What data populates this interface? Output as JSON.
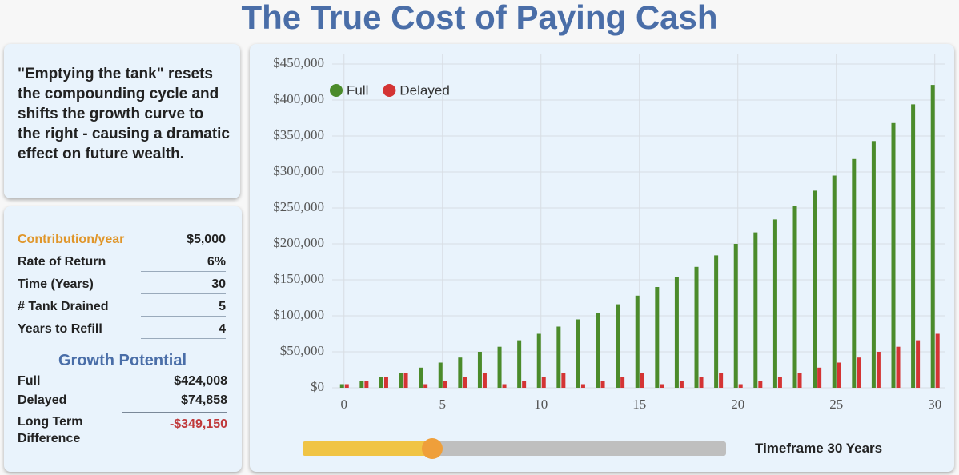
{
  "title": "The True Cost of Paying Cash",
  "summary": "\"Emptying the tank\" resets the compounding cycle and shifts the growth curve to the right - causing a dramatic effect on future wealth.",
  "inputs": [
    {
      "label": "Contribution/year",
      "value": "$5,000"
    },
    {
      "label": "Rate of Return",
      "value": "6%"
    },
    {
      "label": "Time (Years)",
      "value": "30"
    },
    {
      "label": "# Tank Drained",
      "value": "5"
    },
    {
      "label": "Years to Refill",
      "value": "4"
    }
  ],
  "growth": {
    "heading": "Growth Potential",
    "rows": [
      {
        "label": "Full",
        "value": "$424,008"
      },
      {
        "label": "Delayed",
        "value": "$74,858"
      },
      {
        "label": "Long Term Difference",
        "value": "-$349,150"
      }
    ]
  },
  "chart_data": {
    "type": "bar",
    "x": [
      0,
      1,
      2,
      3,
      4,
      5,
      6,
      7,
      8,
      9,
      10,
      11,
      12,
      13,
      14,
      15,
      16,
      17,
      18,
      19,
      20,
      21,
      22,
      23,
      24,
      25,
      26,
      27,
      28,
      29,
      30
    ],
    "series": [
      {
        "name": "Full",
        "color": "#4b8b2b",
        "values": [
          5000,
          10000,
          15000,
          21000,
          28000,
          35000,
          42000,
          50000,
          57000,
          66000,
          75000,
          85000,
          95000,
          104000,
          116000,
          128000,
          140000,
          154000,
          168000,
          184000,
          200000,
          216000,
          234000,
          253000,
          274000,
          295000,
          318000,
          343000,
          368000,
          394000,
          421000
        ]
      },
      {
        "name": "Delayed",
        "color": "#d43434",
        "values": [
          5000,
          10000,
          15000,
          21000,
          5000,
          10000,
          15000,
          21000,
          5000,
          10000,
          15000,
          21000,
          5000,
          10000,
          15000,
          21000,
          5000,
          10000,
          15000,
          21000,
          5000,
          10000,
          15000,
          21000,
          28000,
          35000,
          42000,
          50000,
          57000,
          66000,
          75000
        ]
      }
    ],
    "xlim": [
      -0.6,
      30.5
    ],
    "xticks": [
      0,
      5,
      10,
      15,
      20,
      25,
      30
    ],
    "ylim": [
      0,
      450000
    ],
    "yticks": [
      {
        "value": 0,
        "label": "$0"
      },
      {
        "value": 50000,
        "label": "$50,000"
      },
      {
        "value": 100000,
        "label": "$100,000"
      },
      {
        "value": 150000,
        "label": "$150,000"
      },
      {
        "value": 200000,
        "label": "$200,000"
      },
      {
        "value": 250000,
        "label": "$250,000"
      },
      {
        "value": 300000,
        "label": "$300,000"
      },
      {
        "value": 350000,
        "label": "$350,000"
      },
      {
        "value": 400000,
        "label": "$400,000"
      },
      {
        "value": 450000,
        "label": "$450,000"
      }
    ],
    "grid": true,
    "legend": "top-left"
  },
  "slider_label": "Timeframe 30 Years"
}
